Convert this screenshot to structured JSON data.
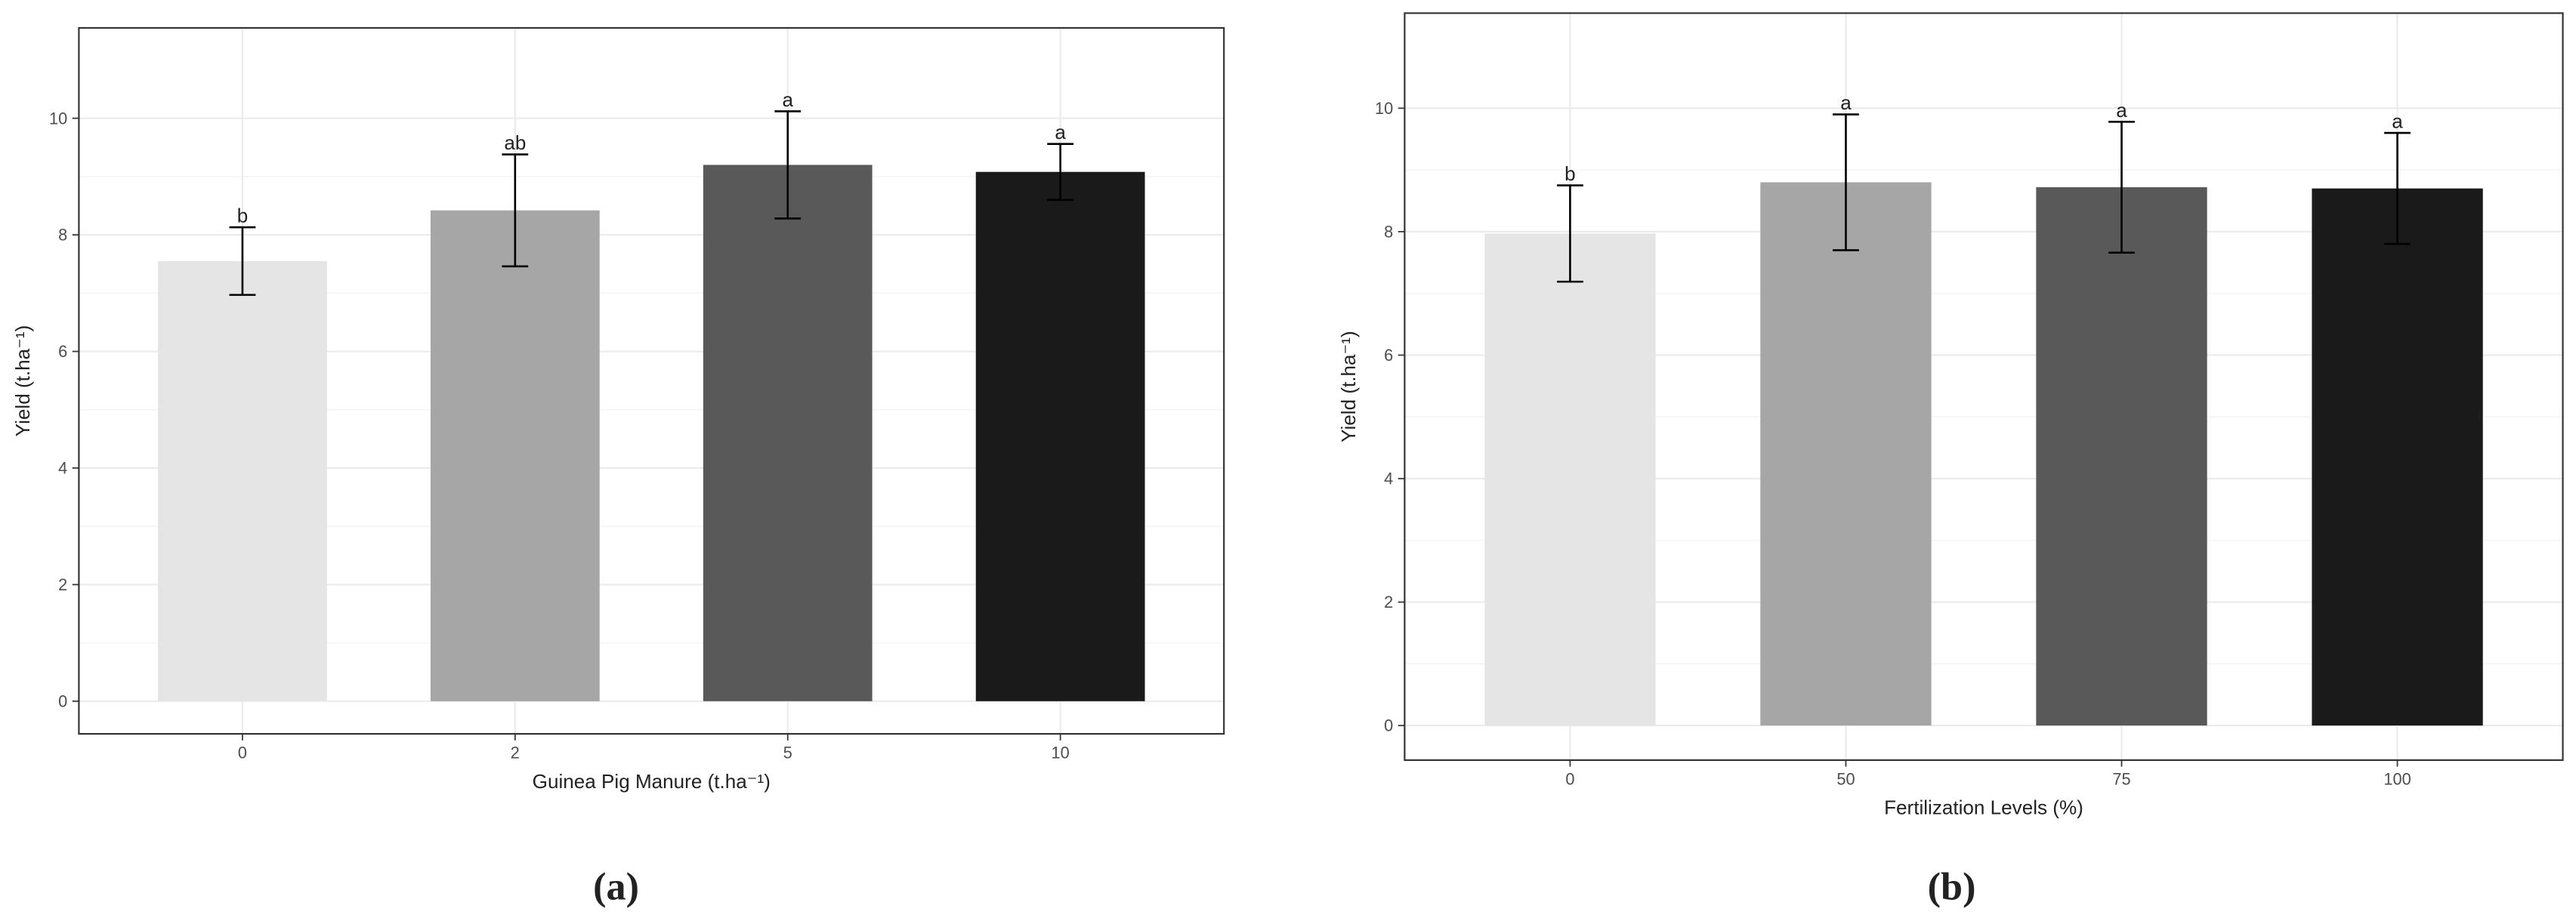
{
  "chart_data": [
    {
      "type": "bar",
      "panel_label": "(a)",
      "x_label": "Guinea Pig Manure (t.ha⁻¹)",
      "y_label": "Yield (t.ha⁻¹)",
      "categories": [
        "0",
        "2",
        "5",
        "10"
      ],
      "values": [
        7.55,
        8.42,
        9.2,
        9.08
      ],
      "errors": [
        0.58,
        0.96,
        0.92,
        0.48
      ],
      "annotations": [
        "b",
        "ab",
        "a",
        "a"
      ],
      "colors": [
        "#e5e5e5",
        "#a6a6a6",
        "#595959",
        "#1a1a1a"
      ],
      "ylim": [
        -0.56,
        11.55
      ],
      "yticks": [
        0,
        2,
        4,
        6,
        8,
        10
      ],
      "grid": true
    },
    {
      "type": "bar",
      "panel_label": "(b)",
      "x_label": "Fertilization Levels (%)",
      "y_label": "Yield (t.ha⁻¹)",
      "categories": [
        "0",
        "50",
        "75",
        "100"
      ],
      "values": [
        7.97,
        8.8,
        8.72,
        8.7
      ],
      "errors": [
        0.78,
        1.1,
        1.06,
        0.9
      ],
      "annotations": [
        "b",
        "a",
        "a",
        "a"
      ],
      "colors": [
        "#e5e5e5",
        "#a6a6a6",
        "#595959",
        "#1a1a1a"
      ],
      "ylim": [
        -0.56,
        11.54
      ],
      "yticks": [
        0,
        2,
        4,
        6,
        8,
        10
      ],
      "grid": true
    }
  ]
}
